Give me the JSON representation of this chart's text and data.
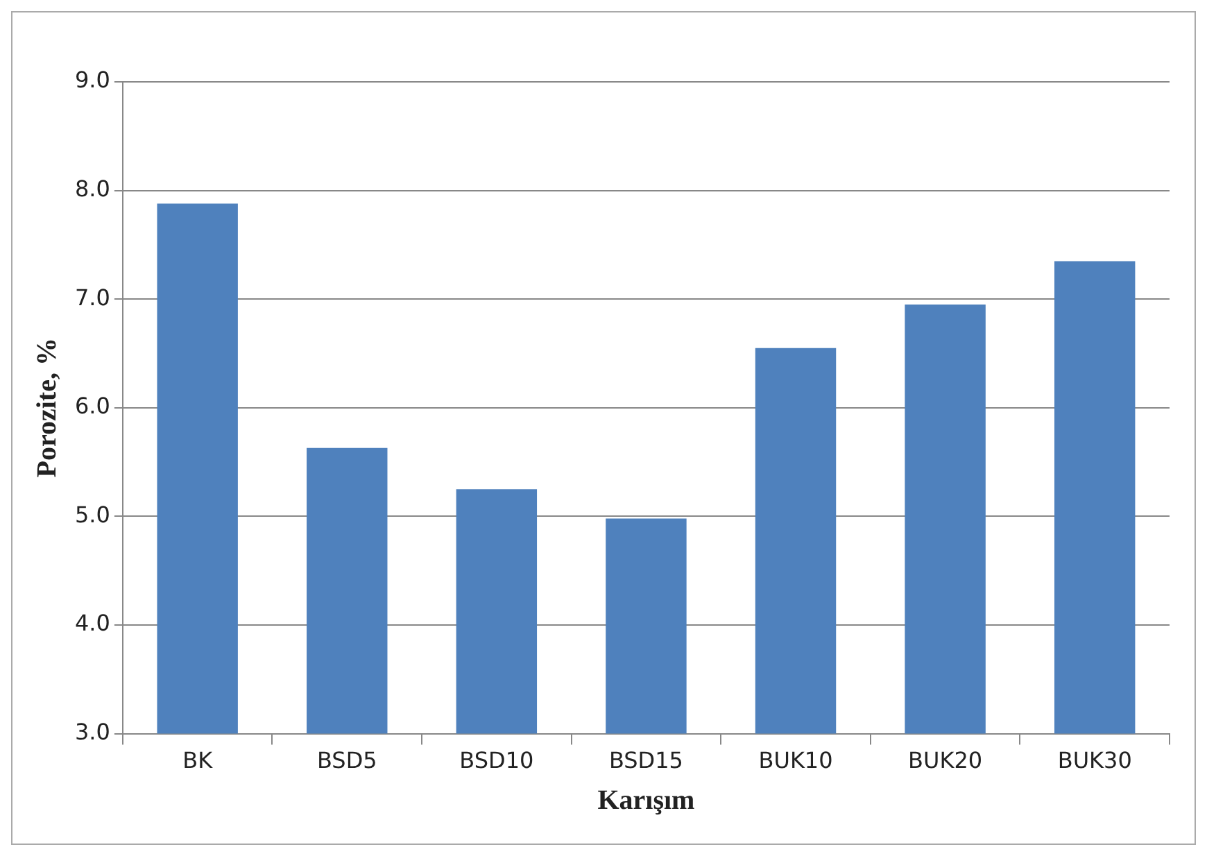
{
  "chart_data": {
    "type": "bar",
    "xlabel": "Karışım",
    "ylabel": "Porozite, %",
    "categories": [
      "BK",
      "BSD5",
      "BSD10",
      "BSD15",
      "BUK10",
      "BUK20",
      "BUK30"
    ],
    "values": [
      7.88,
      5.63,
      5.25,
      4.98,
      6.55,
      6.95,
      7.35
    ],
    "color": "#4f81bd",
    "ylim": [
      3,
      9
    ],
    "yticks": [
      {
        "value": 3,
        "label": "3.0"
      },
      {
        "value": 4,
        "label": "4.0"
      },
      {
        "value": 5,
        "label": "5.0"
      },
      {
        "value": 6,
        "label": "6.0"
      },
      {
        "value": 7,
        "label": "7.0"
      },
      {
        "value": 8,
        "label": "8.0"
      },
      {
        "value": 9,
        "label": "9.0"
      }
    ],
    "grid": "y",
    "legend": false
  }
}
